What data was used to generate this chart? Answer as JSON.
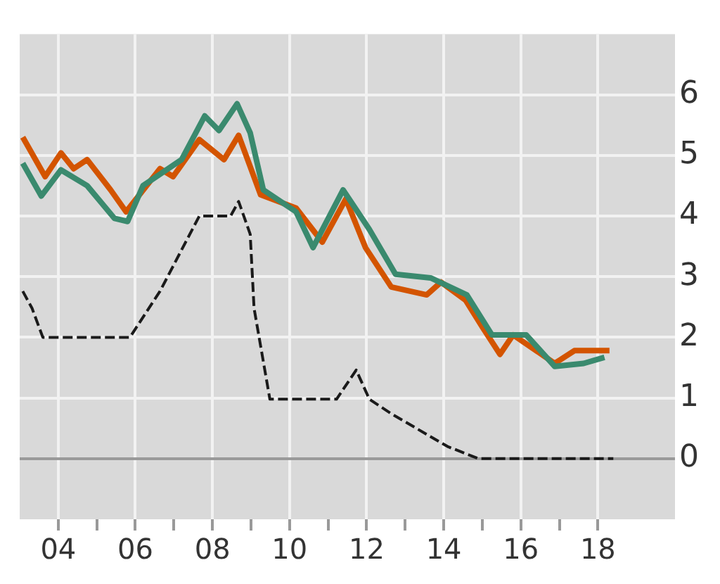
{
  "chart_data": {
    "type": "line",
    "xlim": [
      2003,
      2020
    ],
    "ylim": [
      -1,
      7
    ],
    "xticks": [
      {
        "value": 2004,
        "label": "04"
      },
      {
        "value": 2005,
        "label": null
      },
      {
        "value": 2006,
        "label": "06"
      },
      {
        "value": 2007,
        "label": null
      },
      {
        "value": 2008,
        "label": "08"
      },
      {
        "value": 2009,
        "label": null
      },
      {
        "value": 2010,
        "label": "10"
      },
      {
        "value": 2011,
        "label": null
      },
      {
        "value": 2012,
        "label": "12"
      },
      {
        "value": 2013,
        "label": null
      },
      {
        "value": 2014,
        "label": "14"
      },
      {
        "value": 2015,
        "label": null
      },
      {
        "value": 2016,
        "label": "16"
      },
      {
        "value": 2017,
        "label": null
      },
      {
        "value": 2018,
        "label": "18"
      }
    ],
    "yticks": [
      0,
      1,
      2,
      3,
      4,
      5,
      6
    ],
    "grid": true,
    "legend": false,
    "marker": "none",
    "series": [
      {
        "color": "#3a8a6e",
        "line_style": "solid",
        "x": [
          2003.08,
          2003.56,
          2004.07,
          2004.75,
          2005.46,
          2005.8,
          2006.2,
          2007.2,
          2007.8,
          2008.17,
          2008.64,
          2008.98,
          2009.32,
          2010.17,
          2010.61,
          2011.39,
          2012.07,
          2012.75,
          2013.66,
          2014.6,
          2015.25,
          2016.14,
          2016.88,
          2017.63,
          2018.17
        ],
        "values": [
          4.87,
          4.33,
          4.76,
          4.5,
          3.96,
          3.91,
          4.5,
          4.93,
          5.65,
          5.41,
          5.85,
          5.37,
          4.43,
          4.07,
          3.48,
          4.43,
          3.78,
          3.04,
          2.98,
          2.7,
          2.04,
          2.04,
          1.52,
          1.57,
          1.67
        ]
      },
      {
        "color": "#d35400",
        "line_style": "solid",
        "x": [
          2003.08,
          2003.66,
          2004.07,
          2004.4,
          2004.75,
          2005.36,
          2005.76,
          2006.64,
          2006.98,
          2007.66,
          2008.3,
          2008.68,
          2009.25,
          2010.17,
          2010.85,
          2011.46,
          2011.97,
          2012.64,
          2013.56,
          2013.93,
          2014.57,
          2015.0,
          2015.46,
          2015.8,
          2016.88,
          2017.39,
          2018.3
        ],
        "values": [
          5.3,
          4.65,
          5.04,
          4.78,
          4.93,
          4.43,
          4.07,
          4.78,
          4.65,
          5.26,
          4.93,
          5.33,
          4.35,
          4.13,
          3.57,
          4.28,
          3.48,
          2.83,
          2.7,
          2.91,
          2.61,
          2.17,
          1.72,
          2.04,
          1.57,
          1.78,
          1.78
        ]
      },
      {
        "color": "#1a1a1a",
        "line_style": "dashed",
        "x": [
          2003.08,
          2003.32,
          2003.6,
          2005.86,
          2006.64,
          2007.66,
          2008.47,
          2008.68,
          2008.98,
          2009.08,
          2009.49,
          2011.22,
          2011.73,
          2012.07,
          2012.64,
          2014.1,
          2014.9,
          2018.4
        ],
        "values": [
          2.76,
          2.48,
          2.0,
          2.0,
          2.76,
          4.0,
          4.0,
          4.24,
          3.7,
          2.48,
          0.98,
          0.98,
          1.46,
          0.98,
          0.74,
          0.2,
          0,
          0
        ]
      }
    ]
  }
}
